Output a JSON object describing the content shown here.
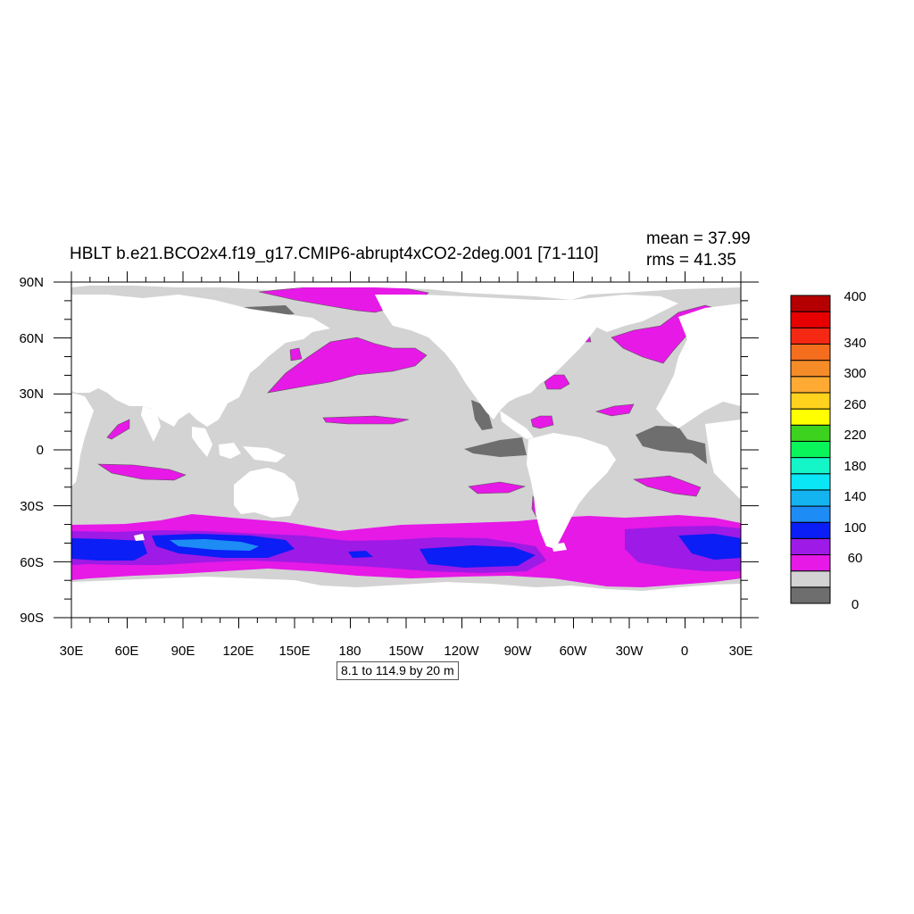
{
  "header": {
    "title": "HBLT b.e21.BCO2x4.f19_g17.CMIP6-abrupt4xCO2-2deg.001 [71-110]",
    "mean_text": "mean = 37.99",
    "rms_text": "rms = 41.35"
  },
  "map": {
    "lat_ticks": [
      "90N",
      "60N",
      "30N",
      "0",
      "30S",
      "60S",
      "90S"
    ],
    "lon_ticks": [
      "30E",
      "60E",
      "90E",
      "120E",
      "150E",
      "180",
      "150W",
      "120W",
      "90W",
      "60W",
      "30W",
      "0",
      "30E"
    ],
    "colors": {
      "land": "#ffffff",
      "ocean_default": "#d3d3d3",
      "low_level": "#6e6e6e",
      "magenta": "#e619e6",
      "violet": "#9e1ae6",
      "blue": "#0a1ef5",
      "cyan_blue": "#1e8cf5"
    }
  },
  "info_box": "8.1 to 114.9 by 20 m",
  "legend": {
    "colors": [
      "#6e6e6e",
      "#d3d3d3",
      "#e619e6",
      "#9e1ae6",
      "#0a1ef5",
      "#1e8cf5",
      "#14b4f0",
      "#0ae6f5",
      "#14f5c8",
      "#0af55a",
      "#3cd21e",
      "#ffff00",
      "#ffd21e",
      "#ffaa32",
      "#f58c28",
      "#f56e1e",
      "#f52814",
      "#e60000",
      "#b40000"
    ],
    "labels": [
      "0",
      "60",
      "100",
      "140",
      "180",
      "220",
      "260",
      "300",
      "340",
      "400"
    ]
  }
}
